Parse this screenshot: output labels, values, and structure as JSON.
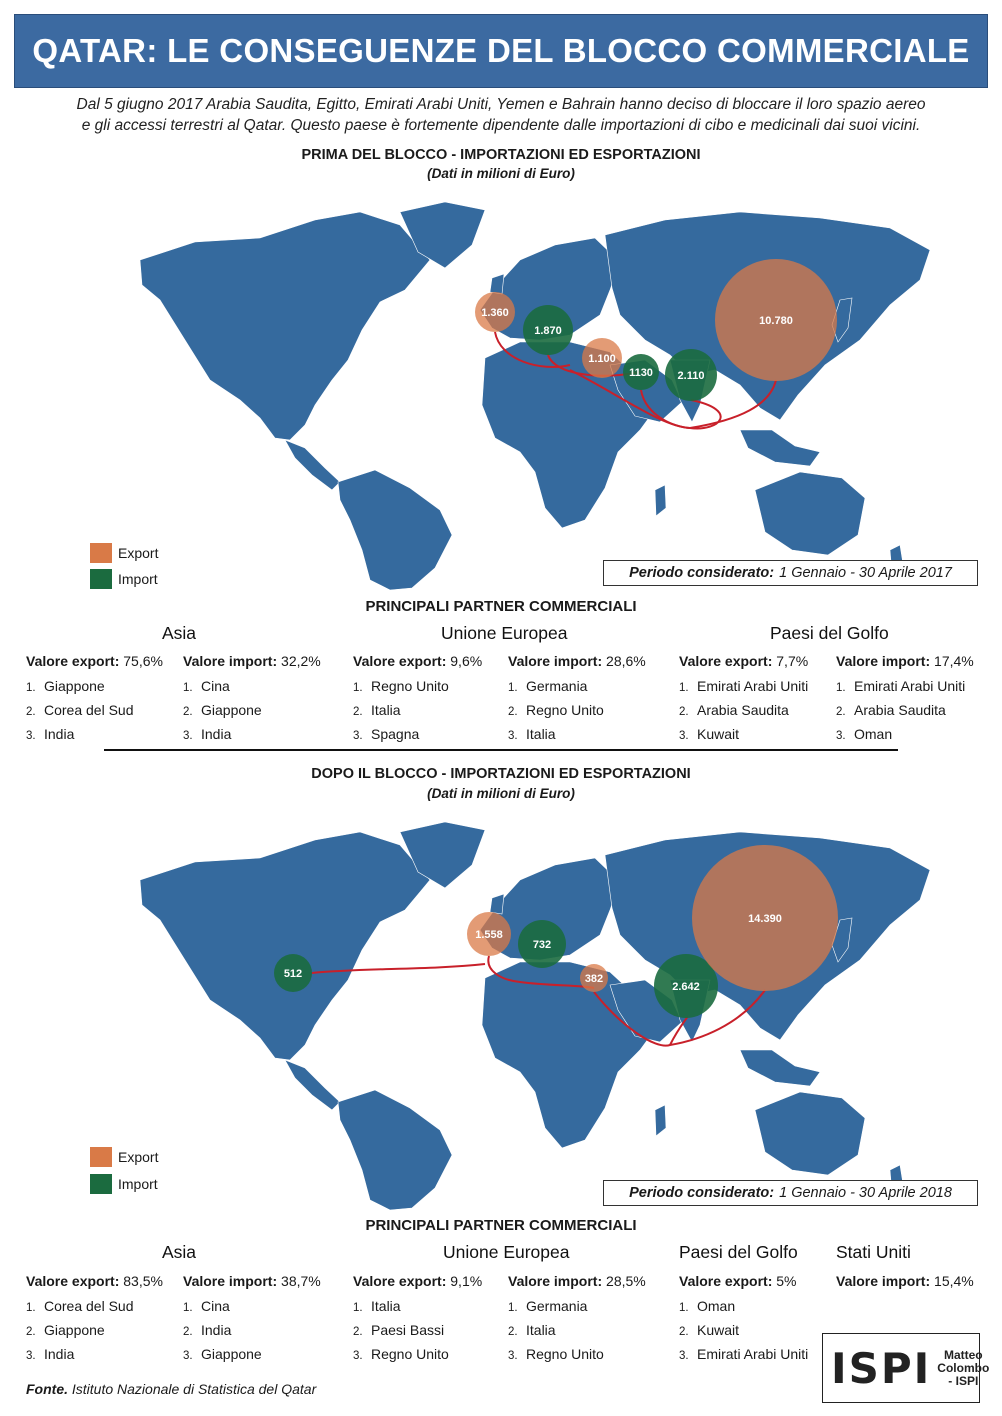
{
  "title": "QATAR: LE CONSEGUENZE DEL BLOCCO COMMERCIALE",
  "intro_line1": "Dal 5 giugno 2017 Arabia Saudita, Egitto, Emirati Arabi Uniti, Yemen e Bahrain hanno deciso di bloccare il loro spazio aereo",
  "intro_line2": "e gli accessi terrestri al Qatar. Questo paese è fortemente dipendente dalle importazioni di cibo e medicinali dai suoi vicini.",
  "legend": {
    "export_label": "Export",
    "import_label": "Import"
  },
  "colors": {
    "export": "#d97a47",
    "import": "#1b6b3f",
    "land": "#356a9e",
    "route": "#c8202a",
    "banner": "#3c6aa1"
  },
  "before": {
    "title": "PRIMA DEL BLOCCO - IMPORTAZIONI ED ESPORTAZIONI",
    "subtitle": "(Dati in milioni di Euro)",
    "period_label": "Periodo considerato:",
    "period_value": "1 Gennaio - 30 Aprile 2017",
    "bubbles": [
      {
        "label": "1.360",
        "type": "export",
        "value": 1360
      },
      {
        "label": "1.870",
        "type": "import",
        "value": 1870
      },
      {
        "label": "1.100",
        "type": "export",
        "value": 1100
      },
      {
        "label": "1130",
        "type": "import",
        "value": 1130
      },
      {
        "label": "2.110",
        "type": "import",
        "value": 2110
      },
      {
        "label": "10.780",
        "type": "export",
        "value": 10780
      }
    ],
    "partners_title": "PRINCIPALI PARTNER COMMERCIALI",
    "regions": [
      {
        "name": "Asia",
        "export": {
          "label": "Valore export:",
          "value": "75,6%",
          "items": [
            "Giappone",
            "Corea del Sud",
            "India"
          ]
        },
        "import": {
          "label": "Valore import:",
          "value": "32,2%",
          "items": [
            "Cina",
            "Giappone",
            "India"
          ]
        }
      },
      {
        "name": "Unione Europea",
        "export": {
          "label": "Valore export:",
          "value": "9,6%",
          "items": [
            "Regno Unito",
            "Italia",
            "Spagna"
          ]
        },
        "import": {
          "label": "Valore import:",
          "value": "28,6%",
          "items": [
            "Germania",
            "Regno Unito",
            "Italia"
          ]
        }
      },
      {
        "name": "Paesi del Golfo",
        "export": {
          "label": "Valore export:",
          "value": "7,7%",
          "items": [
            "Emirati Arabi Uniti",
            "Arabia Saudita",
            "Kuwait"
          ]
        },
        "import": {
          "label": "Valore import:",
          "value": "17,4%",
          "items": [
            "Emirati Arabi Uniti",
            "Arabia Saudita",
            "Oman"
          ]
        }
      }
    ]
  },
  "after": {
    "title": "DOPO IL BLOCCO - IMPORTAZIONI ED ESPORTAZIONI",
    "subtitle": "(Dati in milioni di Euro)",
    "period_label": "Periodo considerato:",
    "period_value": "1 Gennaio - 30 Aprile 2018",
    "bubbles": [
      {
        "label": "512",
        "type": "import",
        "value": 512
      },
      {
        "label": "1.558",
        "type": "export",
        "value": 1558
      },
      {
        "label": "732",
        "type": "import",
        "value": 732
      },
      {
        "label": "382",
        "type": "export",
        "value": 382
      },
      {
        "label": "2.642",
        "type": "import",
        "value": 2642
      },
      {
        "label": "14.390",
        "type": "export",
        "value": 14390
      }
    ],
    "partners_title": "PRINCIPALI PARTNER COMMERCIALI",
    "regions": [
      {
        "name": "Asia",
        "export": {
          "label": "Valore export:",
          "value": "83,5%",
          "items": [
            "Corea del Sud",
            "Giappone",
            "India"
          ]
        },
        "import": {
          "label": "Valore import:",
          "value": "38,7%",
          "items": [
            "Cina",
            "India",
            "Giappone"
          ]
        }
      },
      {
        "name": "Unione Europea",
        "export": {
          "label": "Valore export:",
          "value": "9,1%",
          "items": [
            "Italia",
            "Paesi Bassi",
            "Regno Unito"
          ]
        },
        "import": {
          "label": "Valore import:",
          "value": "28,5%",
          "items": [
            "Germania",
            "Italia",
            "Regno Unito"
          ]
        }
      },
      {
        "name": "Paesi del Golfo",
        "export": {
          "label": "Valore export:",
          "value": "5%",
          "items": [
            "Oman",
            "Kuwait",
            "Emirati Arabi Uniti"
          ]
        }
      },
      {
        "name": "Stati Uniti",
        "import": {
          "label": "Valore import:",
          "value": "15,4%",
          "items": []
        }
      }
    ]
  },
  "source_label": "Fonte.",
  "source_text": "Istituto Nazionale di Statistica del Qatar",
  "logo": {
    "mark": "ISPI",
    "author_line1": "Matteo",
    "author_line2": "Colombo",
    "author_line3": "- ISPI"
  }
}
